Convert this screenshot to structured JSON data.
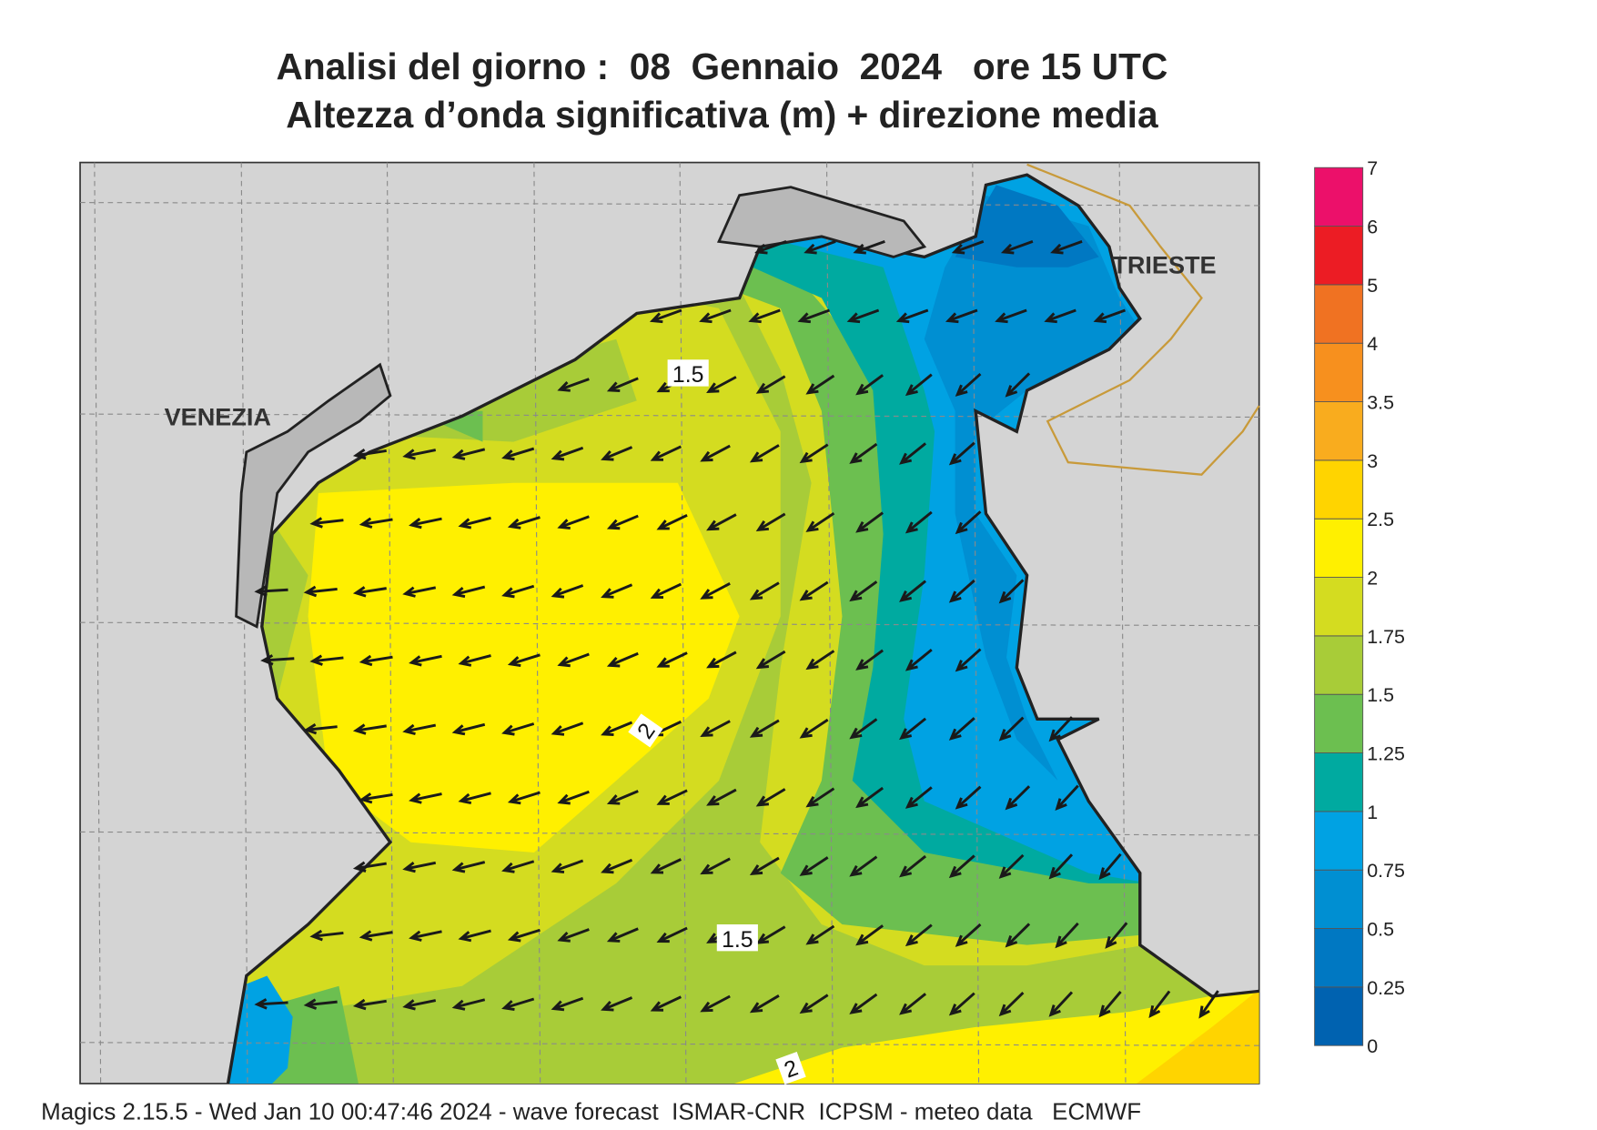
{
  "header": {
    "title": "Analisi del giorno :  08  Gennaio  2024   ore 15 UTC",
    "subtitle": "Altezza d’onda significativa (m) + direzione media"
  },
  "map": {
    "places": [
      {
        "label": "VENEZIA"
      },
      {
        "label": "TRIESTE"
      }
    ],
    "contour_labels": [
      "1.5",
      "2",
      "1.5",
      "2"
    ]
  },
  "legend": {
    "ticks": [
      "0",
      "0.25",
      "0.5",
      "0.75",
      "1",
      "1.25",
      "1.5",
      "1.75",
      "2",
      "2.5",
      "3",
      "3.5",
      "4",
      "5",
      "6",
      "7"
    ],
    "colors": [
      "#0062b0",
      "#0078c2",
      "#008fd2",
      "#00a2e3",
      "#00aaa0",
      "#6cbf50",
      "#a8cc38",
      "#d4dc20",
      "#fff000",
      "#ffd400",
      "#f9ac1e",
      "#f7901e",
      "#f07222",
      "#ec1c24",
      "#ec106a"
    ]
  },
  "footer": "Magics 2.15.5 - Wed Jan 10 00:47:46 2024 - wave forecast  ISMAR-CNR  ICPSM - meteo data   ECMWF"
}
